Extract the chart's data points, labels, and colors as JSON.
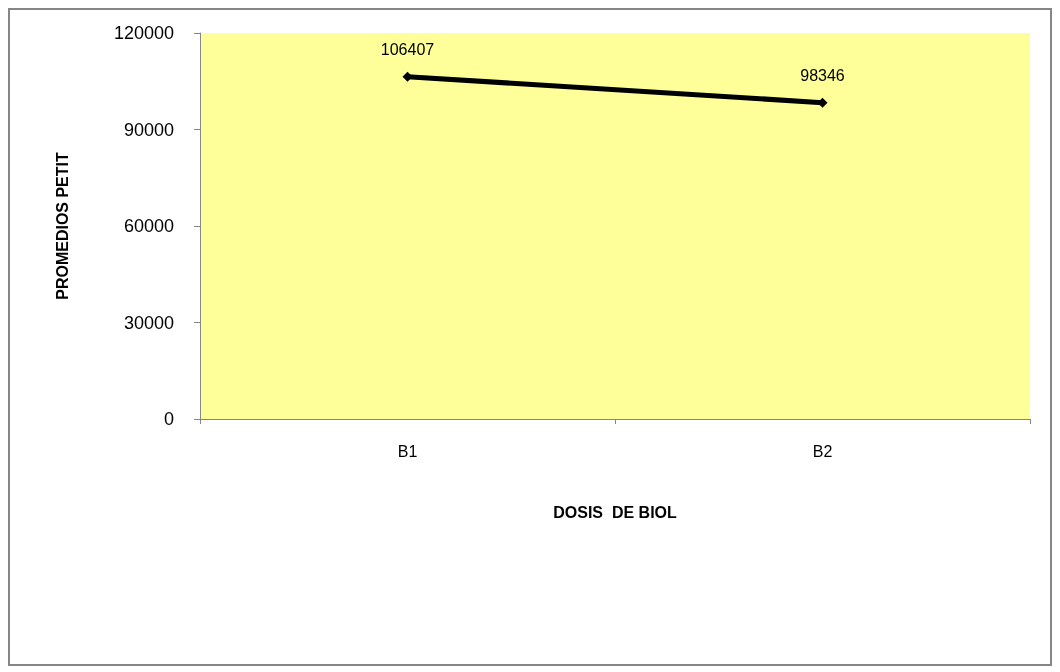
{
  "chart_data": {
    "type": "line",
    "xlabel": "DOSIS  DE BIOL",
    "ylabel": "PROMEDIOS PETIT",
    "categories": [
      "B1",
      "B2"
    ],
    "series": [
      {
        "color": "#000000",
        "values": [
          106407,
          98346
        ]
      }
    ],
    "ylim": [
      0,
      120000
    ],
    "yticks": [
      0,
      30000,
      60000,
      90000,
      120000
    ],
    "grid": false,
    "marker": "diamond",
    "line_style": "solid",
    "data_labels": true
  }
}
